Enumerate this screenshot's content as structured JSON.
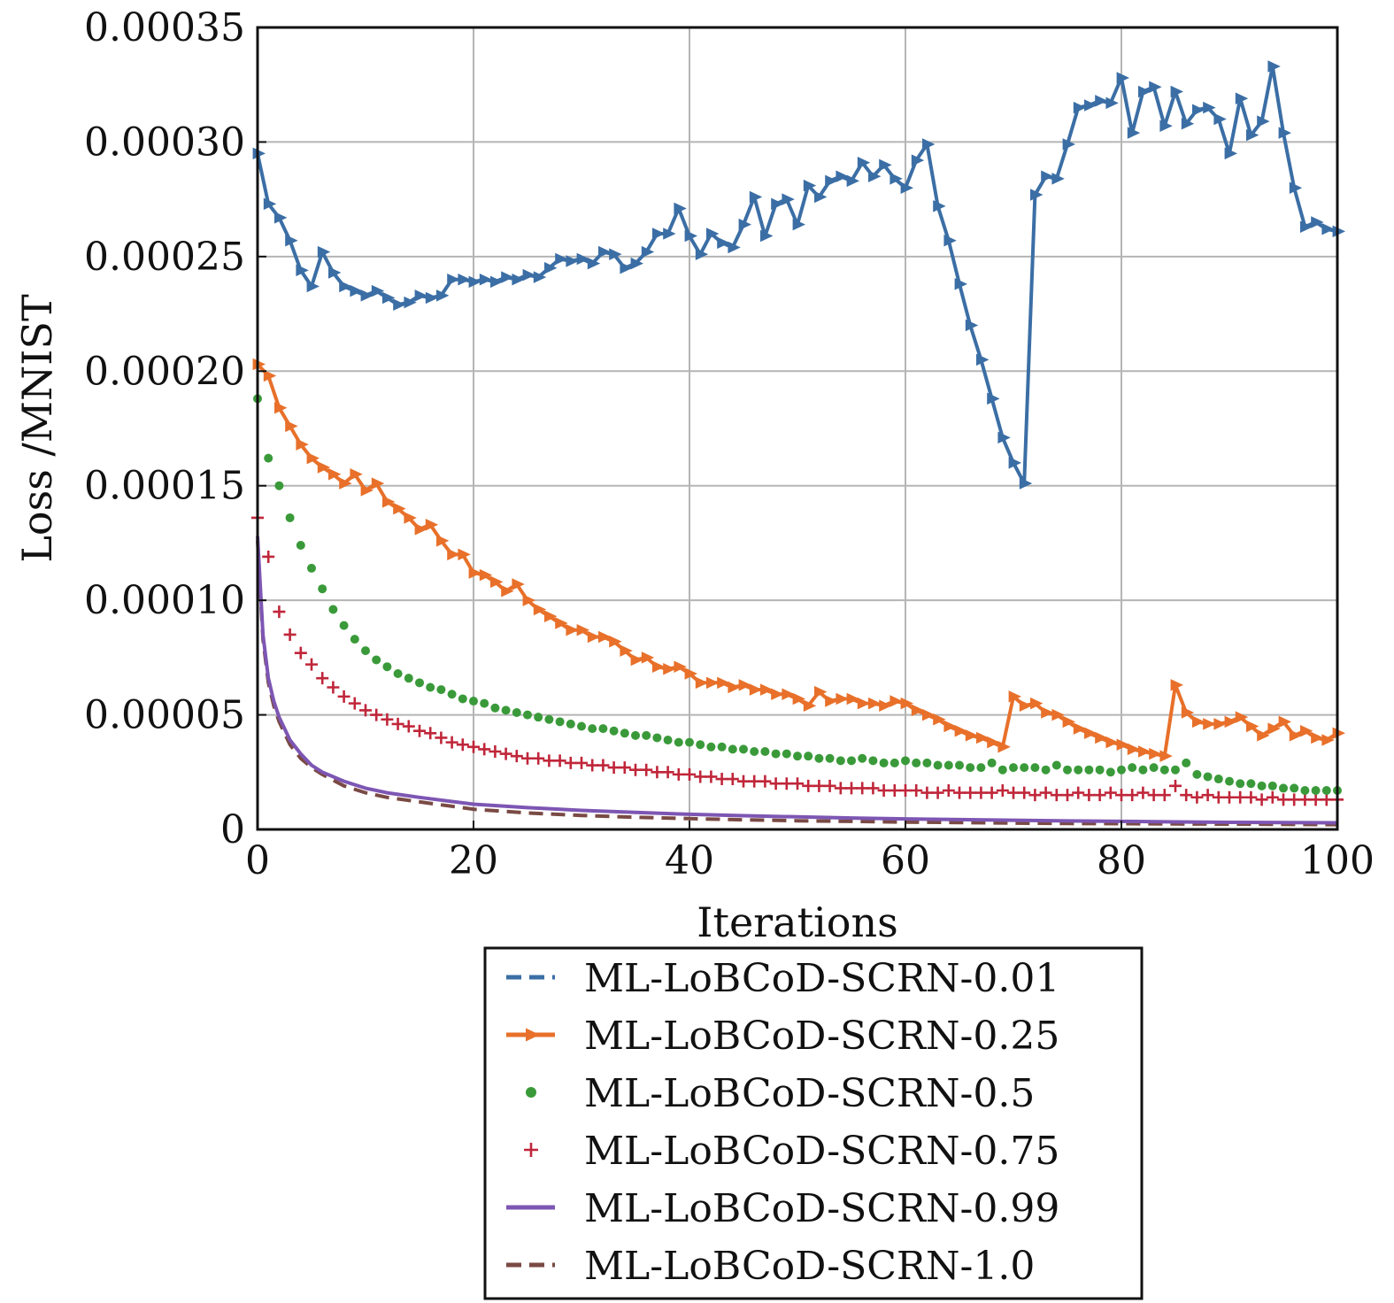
{
  "chart_data": {
    "type": "line",
    "xlabel": "Iterations",
    "ylabel": "Loss /MNIST",
    "xlim": [
      0,
      100
    ],
    "ylim": [
      0,
      0.00035
    ],
    "xticks": [
      "0",
      "20",
      "40",
      "60",
      "80",
      "100"
    ],
    "yticks": [
      "0",
      "0.00005",
      "0.00010",
      "0.00015",
      "0.00020",
      "0.00025",
      "0.00030",
      "0.00035"
    ],
    "grid": true,
    "legend_position": "below",
    "series": [
      {
        "name": "ML-LoBCoD-SCRN-0.01",
        "color": "#3b6ea5",
        "marker": "triangle-right",
        "line": "solid",
        "x": [
          0,
          1,
          2,
          3,
          4,
          5,
          6,
          7,
          8,
          9,
          10,
          11,
          12,
          13,
          14,
          15,
          16,
          17,
          18,
          19,
          20,
          21,
          22,
          23,
          24,
          25,
          26,
          27,
          28,
          29,
          30,
          31,
          32,
          33,
          34,
          35,
          36,
          37,
          38,
          39,
          40,
          41,
          42,
          43,
          44,
          45,
          46,
          47,
          48,
          49,
          50,
          51,
          52,
          53,
          54,
          55,
          56,
          57,
          58,
          59,
          60,
          61,
          62,
          63,
          64,
          65,
          66,
          67,
          68,
          69,
          70,
          71,
          72,
          73,
          74,
          75,
          76,
          77,
          78,
          79,
          80,
          81,
          82,
          83,
          84,
          85,
          86,
          87,
          88,
          89,
          90,
          91,
          92,
          93,
          94,
          95,
          96,
          97,
          98,
          99,
          100
        ],
        "y": [
          0.000295,
          0.000273,
          0.000267,
          0.000257,
          0.000244,
          0.000237,
          0.000252,
          0.000243,
          0.000237,
          0.000235,
          0.000233,
          0.000235,
          0.000232,
          0.000229,
          0.00023,
          0.000233,
          0.000232,
          0.000233,
          0.00024,
          0.00024,
          0.000239,
          0.00024,
          0.000239,
          0.000241,
          0.00024,
          0.000242,
          0.000241,
          0.000245,
          0.000249,
          0.000248,
          0.000249,
          0.000247,
          0.000252,
          0.000251,
          0.000245,
          0.000247,
          0.000252,
          0.00026,
          0.00026,
          0.000271,
          0.000259,
          0.000251,
          0.00026,
          0.000256,
          0.000254,
          0.000264,
          0.000276,
          0.000259,
          0.000273,
          0.000275,
          0.000264,
          0.000281,
          0.000276,
          0.000283,
          0.000285,
          0.000283,
          0.000291,
          0.000285,
          0.00029,
          0.000284,
          0.00028,
          0.000292,
          0.000299,
          0.000272,
          0.000257,
          0.000238,
          0.00022,
          0.000205,
          0.000188,
          0.000171,
          0.00016,
          0.000151,
          0.000277,
          0.000285,
          0.000284,
          0.000299,
          0.000315,
          0.000316,
          0.000318,
          0.000317,
          0.000328,
          0.000304,
          0.000322,
          0.000324,
          0.000307,
          0.000322,
          0.000308,
          0.000314,
          0.000315,
          0.00031,
          0.000295,
          0.000319,
          0.000303,
          0.000309,
          0.000333,
          0.000304,
          0.00028,
          0.000263,
          0.000265,
          0.000262,
          0.000261
        ]
      },
      {
        "name": "ML-LoBCoD-SCRN-0.25",
        "color": "#e8702a",
        "marker": "triangle-right",
        "line": "solid",
        "x": [
          0,
          1,
          2,
          3,
          4,
          5,
          6,
          7,
          8,
          9,
          10,
          11,
          12,
          13,
          14,
          15,
          16,
          17,
          18,
          19,
          20,
          21,
          22,
          23,
          24,
          25,
          26,
          27,
          28,
          29,
          30,
          31,
          32,
          33,
          34,
          35,
          36,
          37,
          38,
          39,
          40,
          41,
          42,
          43,
          44,
          45,
          46,
          47,
          48,
          49,
          50,
          51,
          52,
          53,
          54,
          55,
          56,
          57,
          58,
          59,
          60,
          61,
          62,
          63,
          64,
          65,
          66,
          67,
          68,
          69,
          70,
          71,
          72,
          73,
          74,
          75,
          76,
          77,
          78,
          79,
          80,
          81,
          82,
          83,
          84,
          85,
          86,
          87,
          88,
          89,
          90,
          91,
          92,
          93,
          94,
          95,
          96,
          97,
          98,
          99,
          100
        ],
        "y": [
          0.000203,
          0.000198,
          0.000184,
          0.000176,
          0.000168,
          0.000162,
          0.000158,
          0.000155,
          0.000151,
          0.000155,
          0.000148,
          0.000151,
          0.000143,
          0.00014,
          0.000136,
          0.000131,
          0.000133,
          0.000126,
          0.00012,
          0.00012,
          0.000112,
          0.000111,
          0.000108,
          0.000104,
          0.000107,
          0.0001,
          9.6e-05,
          9.3e-05,
          9e-05,
          8.7e-05,
          8.7e-05,
          8.4e-05,
          8.4e-05,
          8.2e-05,
          7.8e-05,
          7.4e-05,
          7.5e-05,
          7.1e-05,
          7e-05,
          7.1e-05,
          6.8e-05,
          6.4e-05,
          6.4e-05,
          6.4e-05,
          6.2e-05,
          6.3e-05,
          6.1e-05,
          6.1e-05,
          5.9e-05,
          5.9e-05,
          5.7e-05,
          5.4e-05,
          6e-05,
          5.6e-05,
          5.7e-05,
          5.7e-05,
          5.5e-05,
          5.5e-05,
          5.4e-05,
          5.6e-05,
          5.5e-05,
          5.2e-05,
          5e-05,
          4.8e-05,
          4.5e-05,
          4.3e-05,
          4.1e-05,
          4e-05,
          3.8e-05,
          3.6e-05,
          5.8e-05,
          5.4e-05,
          5.5e-05,
          5.1e-05,
          5e-05,
          4.7e-05,
          4.4e-05,
          4.2e-05,
          4e-05,
          3.8e-05,
          3.7e-05,
          3.5e-05,
          3.4e-05,
          3.3e-05,
          3.2e-05,
          6.3e-05,
          5.1e-05,
          4.7e-05,
          4.6e-05,
          4.6e-05,
          4.7e-05,
          4.9e-05,
          4.5e-05,
          4.1e-05,
          4.4e-05,
          4.7e-05,
          4.1e-05,
          4.3e-05,
          4e-05,
          3.9e-05,
          4.2e-05
        ]
      },
      {
        "name": "ML-LoBCoD-SCRN-0.5",
        "color": "#3a9a3a",
        "marker": "dot",
        "line": "none",
        "x": [
          0,
          1,
          2,
          3,
          4,
          5,
          6,
          7,
          8,
          9,
          10,
          11,
          12,
          13,
          14,
          15,
          16,
          17,
          18,
          19,
          20,
          21,
          22,
          23,
          24,
          25,
          26,
          27,
          28,
          29,
          30,
          31,
          32,
          33,
          34,
          35,
          36,
          37,
          38,
          39,
          40,
          41,
          42,
          43,
          44,
          45,
          46,
          47,
          48,
          49,
          50,
          51,
          52,
          53,
          54,
          55,
          56,
          57,
          58,
          59,
          60,
          61,
          62,
          63,
          64,
          65,
          66,
          67,
          68,
          69,
          70,
          71,
          72,
          73,
          74,
          75,
          76,
          77,
          78,
          79,
          80,
          81,
          82,
          83,
          84,
          85,
          86,
          87,
          88,
          89,
          90,
          91,
          92,
          93,
          94,
          95,
          96,
          97,
          98,
          99,
          100
        ],
        "y": [
          0.000188,
          0.000162,
          0.00015,
          0.000136,
          0.000124,
          0.000114,
          0.000105,
          9.6e-05,
          8.9e-05,
          8.3e-05,
          7.8e-05,
          7.4e-05,
          7.1e-05,
          6.8e-05,
          6.6e-05,
          6.4e-05,
          6.2e-05,
          6.1e-05,
          5.9e-05,
          5.7e-05,
          5.6e-05,
          5.5e-05,
          5.3e-05,
          5.2e-05,
          5.1e-05,
          5e-05,
          4.9e-05,
          4.8e-05,
          4.7e-05,
          4.6e-05,
          4.5e-05,
          4.4e-05,
          4.4e-05,
          4.3e-05,
          4.2e-05,
          4.1e-05,
          4.1e-05,
          4e-05,
          3.9e-05,
          3.8e-05,
          3.8e-05,
          3.7e-05,
          3.6e-05,
          3.6e-05,
          3.5e-05,
          3.5e-05,
          3.4e-05,
          3.4e-05,
          3.3e-05,
          3.3e-05,
          3.2e-05,
          3.2e-05,
          3.1e-05,
          3.1e-05,
          3e-05,
          3e-05,
          3.1e-05,
          3e-05,
          2.9e-05,
          2.9e-05,
          3e-05,
          2.9e-05,
          2.9e-05,
          2.8e-05,
          2.8e-05,
          2.8e-05,
          2.7e-05,
          2.7e-05,
          2.9e-05,
          2.6e-05,
          2.7e-05,
          2.7e-05,
          2.7e-05,
          2.6e-05,
          2.8e-05,
          2.6e-05,
          2.6e-05,
          2.6e-05,
          2.6e-05,
          2.5e-05,
          2.6e-05,
          2.7e-05,
          2.6e-05,
          2.7e-05,
          2.6e-05,
          2.6e-05,
          2.9e-05,
          2.4e-05,
          2.3e-05,
          2.2e-05,
          2.1e-05,
          2e-05,
          2e-05,
          1.9e-05,
          1.9e-05,
          1.8e-05,
          1.8e-05,
          1.7e-05,
          1.7e-05,
          1.7e-05,
          1.7e-05
        ]
      },
      {
        "name": "ML-LoBCoD-SCRN-0.75",
        "color": "#c0263a",
        "marker": "plus",
        "line": "none",
        "x": [
          0,
          1,
          2,
          3,
          4,
          5,
          6,
          7,
          8,
          9,
          10,
          11,
          12,
          13,
          14,
          15,
          16,
          17,
          18,
          19,
          20,
          21,
          22,
          23,
          24,
          25,
          26,
          27,
          28,
          29,
          30,
          31,
          32,
          33,
          34,
          35,
          36,
          37,
          38,
          39,
          40,
          41,
          42,
          43,
          44,
          45,
          46,
          47,
          48,
          49,
          50,
          51,
          52,
          53,
          54,
          55,
          56,
          57,
          58,
          59,
          60,
          61,
          62,
          63,
          64,
          65,
          66,
          67,
          68,
          69,
          70,
          71,
          72,
          73,
          74,
          75,
          76,
          77,
          78,
          79,
          80,
          81,
          82,
          83,
          84,
          85,
          86,
          87,
          88,
          89,
          90,
          91,
          92,
          93,
          94,
          95,
          96,
          97,
          98,
          99,
          100
        ],
        "y": [
          0.000136,
          0.000119,
          9.5e-05,
          8.5e-05,
          7.7e-05,
          7.2e-05,
          6.6e-05,
          6.2e-05,
          5.8e-05,
          5.5e-05,
          5.2e-05,
          5e-05,
          4.8e-05,
          4.6e-05,
          4.5e-05,
          4.3e-05,
          4.2e-05,
          4e-05,
          3.8e-05,
          3.7e-05,
          3.6e-05,
          3.5e-05,
          3.4e-05,
          3.3e-05,
          3.2e-05,
          3.1e-05,
          3.1e-05,
          3e-05,
          3e-05,
          2.9e-05,
          2.9e-05,
          2.8e-05,
          2.8e-05,
          2.7e-05,
          2.7e-05,
          2.6e-05,
          2.6e-05,
          2.5e-05,
          2.5e-05,
          2.4e-05,
          2.4e-05,
          2.3e-05,
          2.3e-05,
          2.2e-05,
          2.2e-05,
          2.1e-05,
          2.1e-05,
          2.1e-05,
          2e-05,
          2e-05,
          2e-05,
          1.9e-05,
          1.9e-05,
          1.9e-05,
          1.8e-05,
          1.8e-05,
          1.8e-05,
          1.8e-05,
          1.7e-05,
          1.7e-05,
          1.7e-05,
          1.7e-05,
          1.6e-05,
          1.6e-05,
          1.7e-05,
          1.6e-05,
          1.6e-05,
          1.6e-05,
          1.6e-05,
          1.7e-05,
          1.6e-05,
          1.6e-05,
          1.5e-05,
          1.6e-05,
          1.5e-05,
          1.5e-05,
          1.6e-05,
          1.5e-05,
          1.5e-05,
          1.6e-05,
          1.5e-05,
          1.5e-05,
          1.6e-05,
          1.5e-05,
          1.5e-05,
          1.9e-05,
          1.5e-05,
          1.4e-05,
          1.5e-05,
          1.4e-05,
          1.4e-05,
          1.4e-05,
          1.4e-05,
          1.3e-05,
          1.4e-05,
          1.3e-05,
          1.3e-05,
          1.3e-05,
          1.3e-05,
          1.3e-05,
          1.3e-05
        ]
      },
      {
        "name": "ML-LoBCoD-SCRN-0.99",
        "color": "#7d56b3",
        "marker": "none",
        "line": "solid",
        "x": [
          0,
          0.5,
          1,
          1.5,
          2,
          3,
          4,
          5,
          6,
          8,
          10,
          12,
          15,
          20,
          25,
          30,
          35,
          40,
          45,
          50,
          55,
          60,
          65,
          70,
          75,
          80,
          85,
          90,
          95,
          100
        ],
        "y": [
          0.000128,
          8.5e-05,
          6.6e-05,
          5.6e-05,
          4.9e-05,
          3.9e-05,
          3.3e-05,
          2.8e-05,
          2.5e-05,
          2.1e-05,
          1.8e-05,
          1.6e-05,
          1.4e-05,
          1.1e-05,
          9.5e-06,
          8.3e-06,
          7.4e-06,
          6.6e-06,
          6e-06,
          5.5e-06,
          5e-06,
          4.6e-06,
          4.3e-06,
          4e-06,
          3.7e-06,
          3.5e-06,
          3.3e-06,
          3.1e-06,
          3e-06,
          2.9e-06
        ]
      },
      {
        "name": "ML-LoBCoD-SCRN-1.0",
        "color": "#7a4a44",
        "marker": "none",
        "line": "dashed",
        "x": [
          0,
          0.5,
          1,
          1.5,
          2,
          3,
          4,
          5,
          6,
          8,
          10,
          12,
          15,
          20,
          25,
          30,
          35,
          40,
          45,
          50,
          55,
          60,
          65,
          70,
          75,
          80,
          85,
          90,
          95,
          100
        ],
        "y": [
          0.000126,
          8.3e-05,
          6.4e-05,
          5.4e-05,
          4.7e-05,
          3.7e-05,
          3.1e-05,
          2.7e-05,
          2.4e-05,
          1.9e-05,
          1.6e-05,
          1.4e-05,
          1.2e-05,
          8.8e-06,
          7.2e-06,
          6.1e-06,
          5.3e-06,
          4.7e-06,
          4.2e-06,
          3.8e-06,
          3.5e-06,
          3.2e-06,
          3e-06,
          2.8e-06,
          2.6e-06,
          2.5e-06,
          2.4e-06,
          2.3e-06,
          2.2e-06,
          2.1e-06
        ]
      }
    ],
    "legend_style": [
      {
        "color": "#3b6ea5",
        "style": "dashed"
      },
      {
        "color": "#e8702a",
        "style": "solid-marker"
      },
      {
        "color": "#3a9a3a",
        "style": "dot"
      },
      {
        "color": "#c0263a",
        "style": "plus"
      },
      {
        "color": "#7d56b3",
        "style": "solid"
      },
      {
        "color": "#7a4a44",
        "style": "dashed"
      }
    ]
  }
}
